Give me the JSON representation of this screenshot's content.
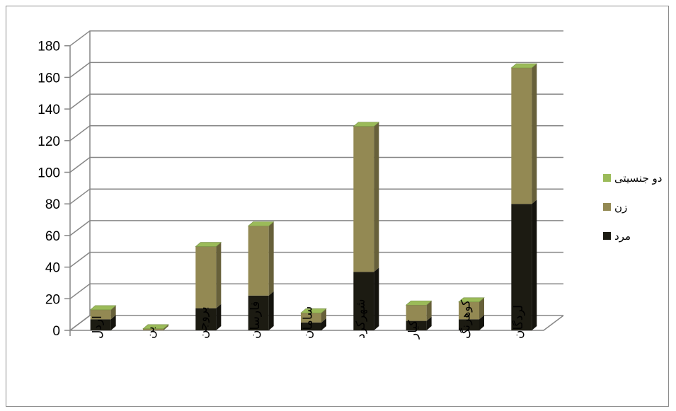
{
  "chart_data": {
    "type": "bar",
    "stacked": true,
    "three_d": true,
    "categories": [
      "اردل",
      "بن",
      "بروجن",
      "فارسان",
      "سامان",
      "شهرکرد",
      "کیار",
      "کوهرنگ",
      "لردگان"
    ],
    "series": [
      {
        "name": "مرد",
        "values": [
          7,
          0,
          14,
          22,
          5,
          37,
          6,
          7,
          80
        ],
        "color": "#1c1b12"
      },
      {
        "name": "زن",
        "values": [
          6,
          1,
          39,
          44,
          6,
          92,
          10,
          11,
          86
        ],
        "color": "#938953"
      },
      {
        "name": "دو جنسیتی",
        "values": [
          0,
          0,
          0,
          0,
          0,
          0,
          0,
          0,
          0
        ],
        "color": "#9bbb59"
      }
    ],
    "yticks": [
      0,
      20,
      40,
      60,
      80,
      100,
      120,
      140,
      160,
      180
    ],
    "ylim": [
      0,
      180
    ],
    "grid": true,
    "legend_position": "right"
  }
}
